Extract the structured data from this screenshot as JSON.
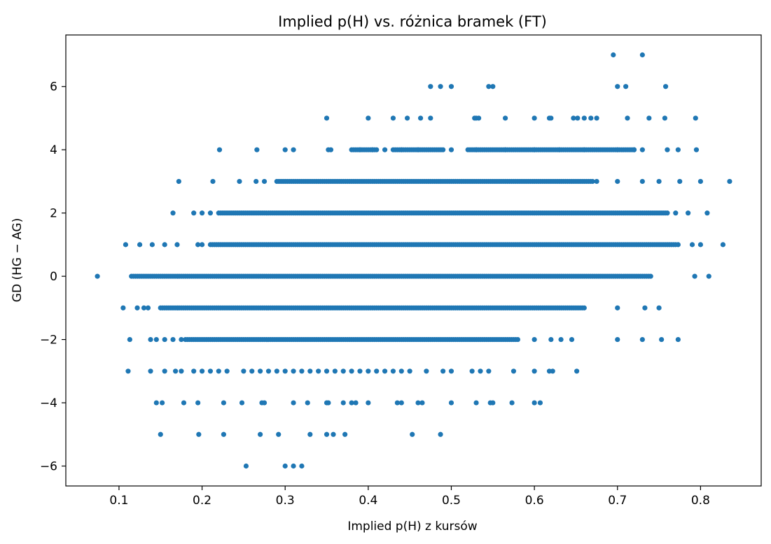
{
  "chart_data": {
    "type": "scatter",
    "title": "Implied p(H) vs. różnica bramek (FT)",
    "xlabel": "Implied p(H) z kursów",
    "ylabel": "GD (HG − AG)",
    "xlim": [
      0.036,
      0.873
    ],
    "ylim": [
      -6.63,
      7.63
    ],
    "xticks": [
      0.1,
      0.2,
      0.3,
      0.4,
      0.5,
      0.6,
      0.7,
      0.8
    ],
    "xtick_labels": [
      "0.1",
      "0.2",
      "0.3",
      "0.4",
      "0.5",
      "0.6",
      "0.7",
      "0.8"
    ],
    "yticks": [
      -6,
      -4,
      -2,
      0,
      2,
      4,
      6
    ],
    "ytick_labels": [
      "−6",
      "−4",
      "−2",
      "0",
      "2",
      "4",
      "6"
    ],
    "grid": false,
    "legend": "none",
    "marker_color": "#1f77b4",
    "series": [
      {
        "rows": [
          {
            "y": 7,
            "x": [
              0.695,
              0.73
            ]
          },
          {
            "y": 6,
            "x": [
              0.475,
              0.487,
              0.5,
              0.545,
              0.55,
              0.7,
              0.71,
              0.758
            ]
          },
          {
            "y": 5,
            "x": [
              0.35,
              0.4,
              0.43,
              0.447,
              0.463,
              0.475,
              0.528,
              0.53,
              0.533,
              0.565,
              0.6,
              0.618,
              0.62,
              0.647,
              0.652,
              0.66,
              0.668,
              0.675,
              0.712,
              0.738,
              0.757,
              0.794
            ]
          },
          {
            "y": 4,
            "x": [
              0.221,
              0.266,
              0.3,
              0.31,
              0.352,
              0.355,
              0.39,
              0.405,
              0.42,
              0.44,
              0.46,
              0.5,
              0.53,
              0.565,
              0.6,
              0.63,
              0.66,
              0.7,
              0.72,
              0.73,
              0.76,
              0.773,
              0.795
            ],
            "bands": [
              [
                0.38,
                0.41
              ],
              [
                0.43,
                0.49
              ],
              [
                0.52,
                0.72
              ]
            ]
          },
          {
            "y": 3,
            "x": [
              0.172,
              0.213,
              0.245,
              0.265,
              0.275,
              0.675,
              0.7,
              0.73,
              0.75,
              0.775,
              0.8,
              0.835
            ],
            "bands": [
              [
                0.29,
                0.67
              ]
            ]
          },
          {
            "y": 2,
            "x": [
              0.165,
              0.19,
              0.2,
              0.21,
              0.77,
              0.785,
              0.808
            ],
            "bands": [
              [
                0.22,
                0.76
              ]
            ]
          },
          {
            "y": 1,
            "x": [
              0.108,
              0.125,
              0.14,
              0.155,
              0.17,
              0.195,
              0.2,
              0.773,
              0.79,
              0.8,
              0.827
            ],
            "bands": [
              [
                0.21,
                0.77
              ]
            ]
          },
          {
            "y": 0,
            "x": [
              0.074,
              0.793,
              0.81
            ],
            "bands": [
              [
                0.115,
                0.74
              ]
            ]
          },
          {
            "y": -1,
            "x": [
              0.105,
              0.122,
              0.13,
              0.135,
              0.7,
              0.733,
              0.75
            ],
            "bands": [
              [
                0.15,
                0.66
              ]
            ]
          },
          {
            "y": -2,
            "x": [
              0.113,
              0.138,
              0.145,
              0.155,
              0.165,
              0.175,
              0.6,
              0.62,
              0.632,
              0.645,
              0.7,
              0.73,
              0.753,
              0.773
            ],
            "bands": [
              [
                0.18,
                0.58
              ]
            ]
          },
          {
            "y": -3,
            "x": [
              0.111,
              0.138,
              0.155,
              0.168,
              0.175,
              0.19,
              0.2,
              0.21,
              0.22,
              0.23,
              0.25,
              0.26,
              0.27,
              0.28,
              0.29,
              0.3,
              0.31,
              0.32,
              0.33,
              0.34,
              0.35,
              0.36,
              0.37,
              0.38,
              0.39,
              0.4,
              0.41,
              0.42,
              0.43,
              0.44,
              0.45,
              0.47,
              0.49,
              0.5,
              0.525,
              0.535,
              0.545,
              0.575,
              0.6,
              0.618,
              0.622,
              0.651
            ]
          },
          {
            "y": -4,
            "x": [
              0.145,
              0.152,
              0.178,
              0.195,
              0.226,
              0.248,
              0.272,
              0.275,
              0.31,
              0.327,
              0.35,
              0.352,
              0.37,
              0.38,
              0.385,
              0.4,
              0.435,
              0.44,
              0.46,
              0.465,
              0.5,
              0.53,
              0.547,
              0.55,
              0.573,
              0.6,
              0.607
            ]
          },
          {
            "y": -5,
            "x": [
              0.15,
              0.196,
              0.226,
              0.27,
              0.292,
              0.33,
              0.35,
              0.358,
              0.372,
              0.453,
              0.487
            ]
          },
          {
            "y": -6,
            "x": [
              0.253,
              0.3,
              0.31,
              0.32
            ]
          }
        ]
      }
    ]
  }
}
